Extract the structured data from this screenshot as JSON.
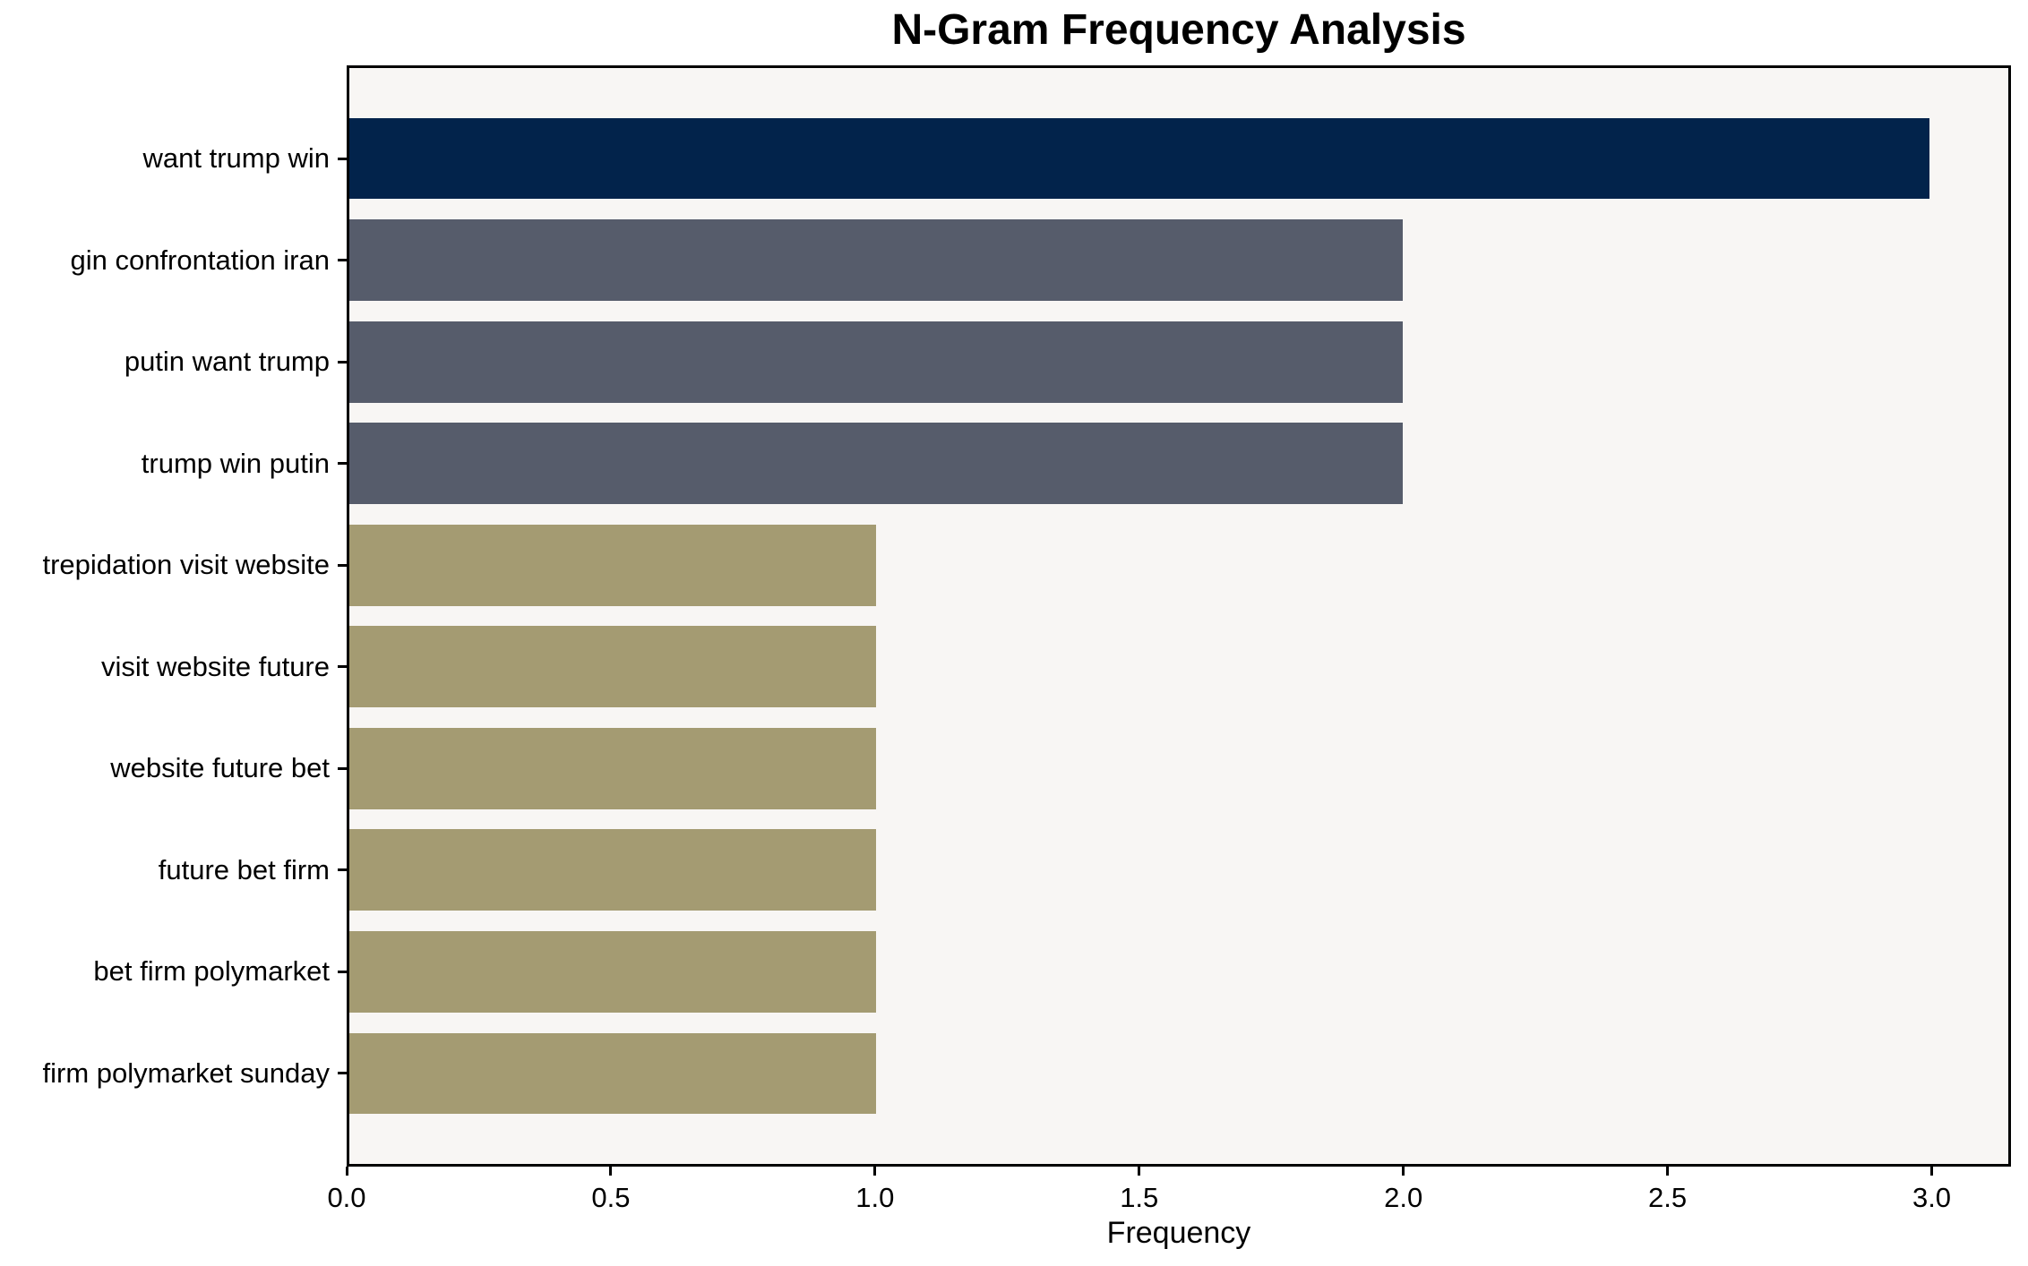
{
  "chart_data": {
    "type": "bar",
    "orientation": "horizontal",
    "title": "N-Gram Frequency Analysis",
    "xlabel": "Frequency",
    "ylabel": "",
    "categories": [
      "want trump win",
      "gin confrontation iran",
      "putin want trump",
      "trump win putin",
      "trepidation visit website",
      "visit website future",
      "website future bet",
      "future bet firm",
      "bet firm polymarket",
      "firm polymarket sunday"
    ],
    "values": [
      3,
      2,
      2,
      2,
      1,
      1,
      1,
      1,
      1,
      1
    ],
    "bar_colors": [
      "#02234b",
      "#565c6b",
      "#565c6b",
      "#565c6b",
      "#a49b72",
      "#a49b72",
      "#a49b72",
      "#a49b72",
      "#a49b72",
      "#a49b72"
    ],
    "xlim": [
      0,
      3.15
    ],
    "x_ticks": [
      {
        "value": 0,
        "label": "0.0"
      },
      {
        "value": 0.5,
        "label": "0.5"
      },
      {
        "value": 1,
        "label": "1.0"
      },
      {
        "value": 1.5,
        "label": "1.5"
      },
      {
        "value": 2,
        "label": "2.0"
      },
      {
        "value": 2.5,
        "label": "2.5"
      },
      {
        "value": 3,
        "label": "3.0"
      }
    ],
    "bar_height_frac": 0.8,
    "y_pad_units": 0.89,
    "grid": false,
    "legend": null,
    "colors": {
      "figure_background": "#ffffff",
      "plot_background": "#f8f6f4",
      "spine": "#000000",
      "text": "#000000"
    }
  }
}
